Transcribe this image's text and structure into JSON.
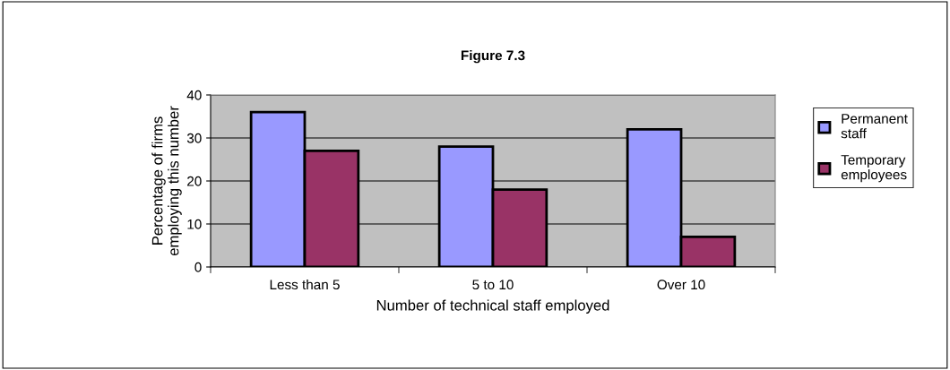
{
  "chart_data": {
    "type": "bar",
    "title": "Figure 7.3",
    "xlabel": "Number of technical staff employed",
    "ylabel": "Percentage of firms\nemploying this number",
    "categories": [
      "Less than 5",
      "5 to 10",
      "Over 10"
    ],
    "series": [
      {
        "name": "Permanent\nstaff",
        "color": "#9999ff",
        "values": [
          36,
          28,
          32
        ]
      },
      {
        "name": "Temporary\nemployees",
        "color": "#993366",
        "values": [
          27,
          18,
          7
        ]
      }
    ],
    "ylim": [
      0,
      40
    ],
    "yticks": [
      0,
      10,
      20,
      30,
      40
    ],
    "grid": "y",
    "legend": "right"
  }
}
